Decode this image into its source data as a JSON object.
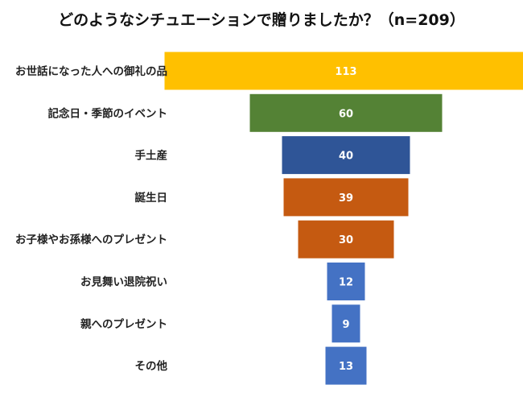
{
  "chart_data": {
    "type": "bar",
    "subtype": "funnel",
    "title": "どのようなシチュエーションで贈りましたか？（n=209）",
    "categories": [
      "お世話になった人への御礼の品",
      "記念日・季節のイベント",
      "手土産",
      "誕生日",
      "お子様やお孫様へのプレゼント",
      "お見舞い退院祝い",
      "親へのプレゼント",
      "その他"
    ],
    "values": [
      113,
      60,
      40,
      39,
      30,
      12,
      9,
      13
    ],
    "value_labels": [
      "113",
      "60",
      "40",
      "39",
      "30",
      "12",
      "9",
      "13"
    ],
    "colors": [
      "#FFC000",
      "#548235",
      "#2F5597",
      "#C55A11",
      "#C55A11",
      "#4472C4",
      "#4472C4",
      "#4472C4"
    ],
    "label_text_colors": [
      "#404040",
      "#ffffff",
      "#ffffff",
      "#ffffff",
      "#ffffff",
      "#ffffff",
      "#ffffff",
      "#ffffff"
    ],
    "legend": "none",
    "grid": false
  }
}
